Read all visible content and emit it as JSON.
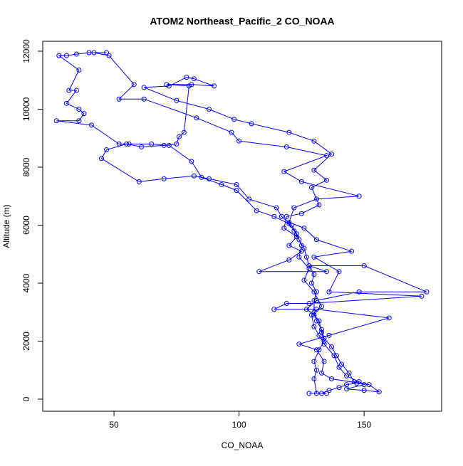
{
  "chart_data": {
    "type": "line",
    "title": "ATOM2 Northeast_Pacific_2 CO_NOAA",
    "x_label": "CO_NOAA",
    "y_label": "Altitude (m)",
    "color": "#0000ff",
    "x": [
      47,
      40,
      35,
      31,
      28,
      36,
      32,
      35,
      31,
      36,
      38,
      36,
      27,
      41,
      52,
      56,
      65,
      72,
      81,
      85,
      93,
      99,
      107,
      114,
      120,
      122,
      124,
      126,
      127,
      128,
      130,
      129,
      131,
      130,
      130,
      131,
      133,
      134,
      137,
      139,
      141,
      144,
      146,
      147,
      143,
      140,
      136,
      133,
      128,
      135,
      131,
      130,
      131,
      130,
      132,
      134,
      133,
      132,
      130,
      127,
      131,
      148,
      175,
      150,
      128,
      135,
      108,
      120,
      125,
      120,
      123,
      118,
      119,
      125,
      132,
      129,
      135,
      130,
      137,
      130,
      120,
      105,
      98,
      88,
      75,
      62,
      72,
      79,
      82,
      90,
      81,
      71,
      80,
      78,
      76,
      75,
      70,
      61,
      55,
      47,
      45,
      60,
      70,
      82,
      88,
      99,
      104,
      115,
      117,
      121,
      123,
      125,
      124,
      128,
      126,
      130,
      133,
      129,
      130,
      132,
      134,
      138,
      140,
      143,
      148,
      150,
      143,
      150,
      156,
      152,
      137,
      133,
      134,
      131,
      124,
      136,
      160,
      131,
      114,
      119,
      128,
      173,
      136,
      140,
      130,
      145,
      131,
      126,
      120,
      122,
      131,
      148,
      125,
      118,
      135,
      119,
      100,
      97,
      83,
      62,
      52,
      58,
      48,
      42
    ],
    "values": [
      11950,
      11950,
      11900,
      11850,
      11850,
      11350,
      10650,
      10650,
      10200,
      10000,
      9850,
      9600,
      9600,
      9450,
      8800,
      8800,
      8800,
      8750,
      8200,
      7650,
      7400,
      7200,
      6500,
      6300,
      6050,
      5800,
      5500,
      5200,
      4900,
      4600,
      4300,
      4000,
      3700,
      3400,
      3000,
      2700,
      2400,
      2100,
      1800,
      1500,
      1200,
      900,
      600,
      550,
      500,
      400,
      300,
      200,
      200,
      200,
      200,
      700,
      1000,
      1300,
      1700,
      2000,
      2300,
      2700,
      2900,
      3100,
      3400,
      3700,
      3700,
      4600,
      4600,
      4400,
      4400,
      4800,
      5100,
      5300,
      5600,
      5900,
      6300,
      6400,
      6700,
      7300,
      7550,
      7900,
      8450,
      8900,
      9200,
      9500,
      9650,
      10000,
      10300,
      10750,
      10800,
      11100,
      11050,
      10800,
      10850,
      10850,
      10800,
      9200,
      9050,
      8800,
      8750,
      8700,
      8800,
      8600,
      8300,
      7500,
      7600,
      7700,
      7600,
      7400,
      6900,
      6600,
      6300,
      6000,
      5700,
      5300,
      4900,
      4500,
      4100,
      3700,
      3200,
      2900,
      2500,
      2200,
      1900,
      1500,
      1100,
      800,
      600,
      500,
      350,
      300,
      250,
      500,
      700,
      900,
      1300,
      1700,
      1900,
      2200,
      2800,
      3100,
      3100,
      3300,
      3300,
      3550,
      3700,
      4400,
      4900,
      5100,
      5500,
      5900,
      6100,
      6600,
      6900,
      7000,
      7500,
      7850,
      8400,
      8700,
      8900,
      9200,
      9700,
      10350,
      10350,
      10850,
      11850,
      11950
    ],
    "xlim": [
      21.5,
      181
    ],
    "ylim": [
      -417,
      12343
    ],
    "xticks": [
      50,
      100,
      150
    ],
    "yticks": [
      0,
      2000,
      4000,
      6000,
      8000,
      10000,
      12000
    ]
  }
}
